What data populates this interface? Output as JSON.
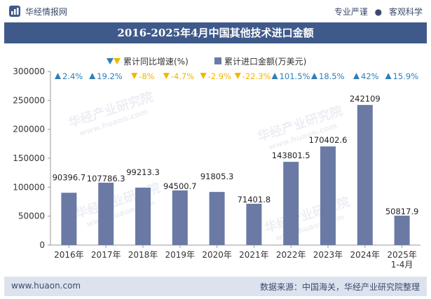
{
  "header": {
    "brand": "华经情报网",
    "tagline_left": "专业严谨",
    "tagline_sep": "●",
    "tagline_right": "客观科学"
  },
  "footer": {
    "url": "www.huaon.com",
    "source": "数据来源：中国海关，华经产业研究院整理"
  },
  "colors": {
    "bar": "#6a7aa5",
    "up": "#2e7eb8",
    "down": "#f2b600",
    "title_bg": "#3f5a8a",
    "footer_bg": "#dde3ee"
  },
  "chart_data": {
    "type": "bar",
    "title": "2016-2025年4月中国其他技术进口金额",
    "legend": {
      "growth_label": "累计同比增速(%)",
      "amount_label": "累计进口金额(万美元)"
    },
    "categories": [
      "2016年",
      "2017年",
      "2018年",
      "2019年",
      "2020年",
      "2021年",
      "2022年",
      "2023年",
      "2024年",
      "2025年\n1-4月"
    ],
    "values": [
      90396.7,
      107786.3,
      99213.3,
      94500.7,
      91805.3,
      71401.8,
      143801.5,
      170402.6,
      242109,
      50817.9
    ],
    "value_labels": [
      "90396.7",
      "107786.3",
      "99213.3",
      "94500.7",
      "91805.3",
      "71401.8",
      "143801.5",
      "170402.6",
      "242109",
      "50817.9"
    ],
    "growth": [
      2.4,
      19.2,
      -8,
      -4.7,
      -2.9,
      -22.3,
      101.5,
      18.5,
      42,
      15.9
    ],
    "growth_labels": [
      "2.4%",
      "19.2%",
      "-8%",
      "-4.7%",
      "-2.9%",
      "-22.3%",
      "101.5%",
      "18.5%",
      "42%",
      "15.9%"
    ],
    "yticks": [
      "0",
      "50000",
      "100000",
      "150000",
      "200000",
      "250000",
      "300000"
    ],
    "ylim": [
      0,
      300000
    ],
    "watermark": "华经产业研究院",
    "watermark_url": "www.huaon.com"
  }
}
